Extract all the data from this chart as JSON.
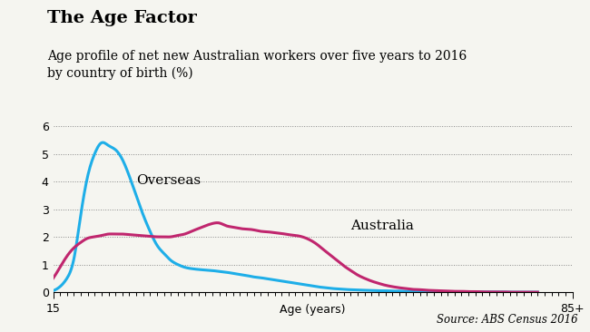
{
  "title": "The Age Factor",
  "subtitle": "Age profile of net new Australian workers over five years to 2016\nby country of birth (%)",
  "source": "Source: ABS Census 2016",
  "xlabel": "Age (years)",
  "xlim": [
    15,
    90
  ],
  "ylim": [
    0,
    6
  ],
  "yticks": [
    0,
    1,
    2,
    3,
    4,
    5,
    6
  ],
  "xtick_start": 15,
  "xtick_end": 90,
  "overseas_color": "#1EAEE8",
  "australia_color": "#C0266E",
  "overseas_label": "Overseas",
  "australia_label": "Australia",
  "ages": [
    15,
    16,
    17,
    18,
    19,
    20,
    21,
    22,
    23,
    24,
    25,
    26,
    27,
    28,
    29,
    30,
    31,
    32,
    33,
    34,
    35,
    36,
    37,
    38,
    39,
    40,
    41,
    42,
    43,
    44,
    45,
    46,
    47,
    48,
    49,
    50,
    51,
    52,
    53,
    54,
    55,
    56,
    57,
    58,
    59,
    60,
    61,
    62,
    63,
    64,
    65,
    66,
    67,
    68,
    69,
    70,
    71,
    72,
    73,
    74,
    75,
    76,
    77,
    78,
    79,
    80,
    81,
    82,
    83,
    84,
    85
  ],
  "overseas": [
    0.05,
    0.2,
    0.5,
    1.2,
    2.8,
    4.2,
    5.0,
    5.4,
    5.3,
    5.15,
    4.8,
    4.2,
    3.5,
    2.8,
    2.2,
    1.7,
    1.4,
    1.15,
    1.0,
    0.9,
    0.85,
    0.82,
    0.8,
    0.78,
    0.75,
    0.72,
    0.68,
    0.64,
    0.6,
    0.55,
    0.52,
    0.48,
    0.44,
    0.4,
    0.36,
    0.32,
    0.28,
    0.24,
    0.2,
    0.17,
    0.14,
    0.12,
    0.1,
    0.09,
    0.08,
    0.07,
    0.06,
    0.05,
    0.05,
    0.04,
    0.04,
    0.03,
    0.03,
    0.03,
    0.02,
    0.02,
    0.02,
    0.02,
    0.01,
    0.01,
    0.01,
    0.01,
    0.01,
    0.01,
    0.01,
    0.01,
    0.0,
    0.0,
    0.0,
    0.0,
    0.0
  ],
  "australia": [
    0.5,
    0.9,
    1.3,
    1.6,
    1.8,
    1.95,
    2.0,
    2.05,
    2.1,
    2.1,
    2.1,
    2.08,
    2.06,
    2.04,
    2.02,
    2.0,
    2.0,
    2.0,
    2.05,
    2.1,
    2.2,
    2.3,
    2.4,
    2.48,
    2.5,
    2.4,
    2.35,
    2.3,
    2.28,
    2.25,
    2.2,
    2.18,
    2.15,
    2.12,
    2.08,
    2.05,
    2.0,
    1.9,
    1.75,
    1.55,
    1.35,
    1.15,
    0.95,
    0.78,
    0.62,
    0.5,
    0.4,
    0.32,
    0.25,
    0.2,
    0.16,
    0.13,
    0.1,
    0.09,
    0.07,
    0.06,
    0.05,
    0.04,
    0.03,
    0.03,
    0.02,
    0.02,
    0.01,
    0.01,
    0.01,
    0.01,
    0.0,
    0.0,
    0.0,
    0.0,
    0.0
  ],
  "background_color": "#f5f5f0",
  "plot_bg_color": "#f5f5f0",
  "title_fontsize": 14,
  "subtitle_fontsize": 10,
  "label_fontsize": 11,
  "source_fontsize": 8.5
}
